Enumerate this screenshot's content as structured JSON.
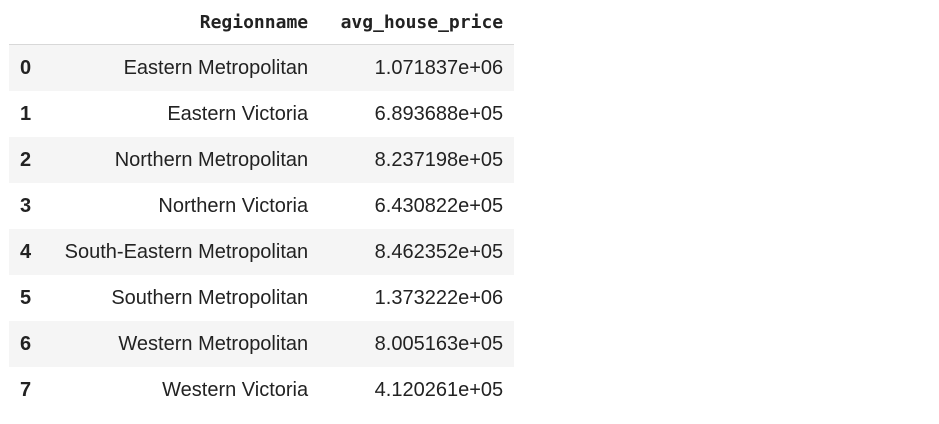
{
  "table": {
    "columns": [
      "Regionname",
      "avg_house_price"
    ],
    "rows": [
      {
        "index": "0",
        "Regionname": "Eastern Metropolitan",
        "avg_house_price": "1.071837e+06"
      },
      {
        "index": "1",
        "Regionname": "Eastern Victoria",
        "avg_house_price": "6.893688e+05"
      },
      {
        "index": "2",
        "Regionname": "Northern Metropolitan",
        "avg_house_price": "8.237198e+05"
      },
      {
        "index": "3",
        "Regionname": "Northern Victoria",
        "avg_house_price": "6.430822e+05"
      },
      {
        "index": "4",
        "Regionname": "South-Eastern Metropolitan",
        "avg_house_price": "8.462352e+05"
      },
      {
        "index": "5",
        "Regionname": "Southern Metropolitan",
        "avg_house_price": "1.373222e+06"
      },
      {
        "index": "6",
        "Regionname": "Western Metropolitan",
        "avg_house_price": "8.005163e+05"
      },
      {
        "index": "7",
        "Regionname": "Western Victoria",
        "avg_house_price": "4.120261e+05"
      }
    ]
  },
  "colors": {
    "stripe": "#f5f5f5",
    "text": "#222222",
    "header_rule": "#d8d8d8"
  }
}
